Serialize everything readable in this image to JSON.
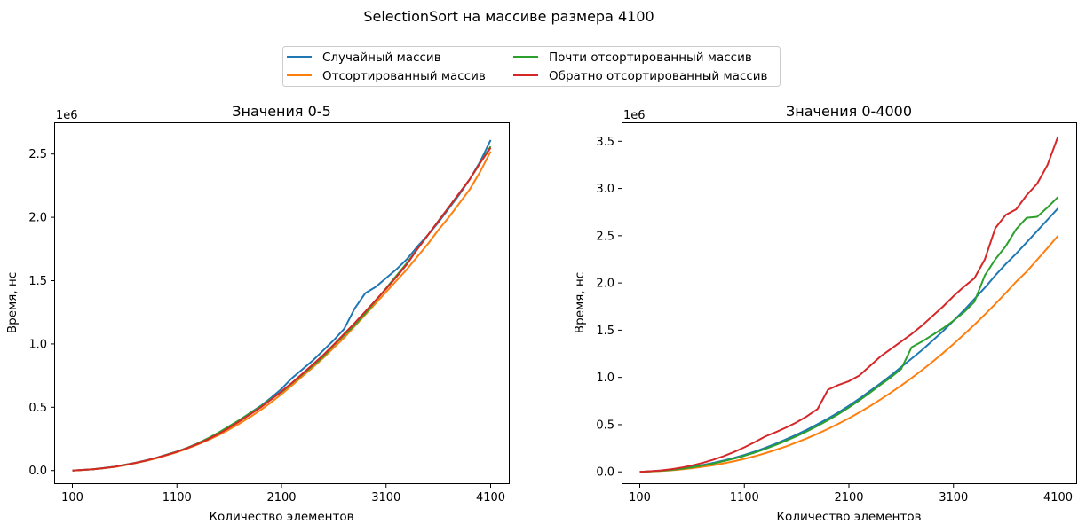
{
  "figure": {
    "suptitle": "SelectionSort на массиве размера 4100",
    "legend": {
      "placement": "top-center",
      "columns": 2,
      "items": [
        {
          "label": "Случайный массив",
          "color": "#1f77b4"
        },
        {
          "label": "Отсортированный массив",
          "color": "#ff7f0e"
        },
        {
          "label": "Почти отсортированный массив",
          "color": "#2ca02c"
        },
        {
          "label": "Обратно отсортированный массив",
          "color": "#d62728"
        }
      ]
    }
  },
  "chart_data": [
    {
      "type": "line",
      "title": "Значения 0-5",
      "xlabel": "Количество элементов",
      "ylabel": "Время, нс",
      "y_multiplier_label": "1e6",
      "xlim": [
        100,
        4100
      ],
      "ylim": [
        -0.1,
        2.75
      ],
      "xticks": [
        100,
        1100,
        2100,
        3100,
        4100
      ],
      "yticks": [
        0.0,
        0.5,
        1.0,
        1.5,
        2.0,
        2.5
      ],
      "ytick_labels": [
        "0.0",
        "0.5",
        "1.0",
        "1.5",
        "2.0",
        "2.5"
      ],
      "grid": false,
      "x": [
        100,
        200,
        300,
        400,
        500,
        600,
        700,
        800,
        900,
        1000,
        1100,
        1200,
        1300,
        1400,
        1500,
        1600,
        1700,
        1800,
        1900,
        2000,
        2100,
        2200,
        2300,
        2400,
        2500,
        2600,
        2700,
        2800,
        2900,
        3000,
        3100,
        3200,
        3300,
        3400,
        3500,
        3600,
        3700,
        3800,
        3900,
        4000,
        4100
      ],
      "series": [
        {
          "name": "Случайный массив",
          "color": "#1f77b4",
          "values": [
            0.0,
            0.005,
            0.01,
            0.02,
            0.03,
            0.045,
            0.06,
            0.08,
            0.1,
            0.125,
            0.15,
            0.18,
            0.215,
            0.255,
            0.3,
            0.35,
            0.4,
            0.455,
            0.51,
            0.575,
            0.645,
            0.73,
            0.8,
            0.87,
            0.95,
            1.03,
            1.12,
            1.28,
            1.4,
            1.45,
            1.52,
            1.59,
            1.67,
            1.77,
            1.86,
            1.96,
            2.07,
            2.18,
            2.3,
            2.44,
            2.61
          ]
        },
        {
          "name": "Отсортированный массив",
          "color": "#ff7f0e",
          "values": [
            0.0,
            0.004,
            0.01,
            0.018,
            0.028,
            0.042,
            0.058,
            0.076,
            0.096,
            0.12,
            0.145,
            0.174,
            0.206,
            0.242,
            0.28,
            0.325,
            0.372,
            0.423,
            0.478,
            0.538,
            0.603,
            0.672,
            0.745,
            0.815,
            0.89,
            0.97,
            1.05,
            1.14,
            1.23,
            1.32,
            1.41,
            1.5,
            1.59,
            1.69,
            1.79,
            1.9,
            2.0,
            2.11,
            2.22,
            2.36,
            2.52
          ]
        },
        {
          "name": "Почти отсортированный массив",
          "color": "#2ca02c",
          "values": [
            0.0,
            0.005,
            0.01,
            0.019,
            0.03,
            0.045,
            0.06,
            0.079,
            0.1,
            0.125,
            0.15,
            0.18,
            0.215,
            0.255,
            0.3,
            0.35,
            0.4,
            0.453,
            0.505,
            0.565,
            0.62,
            0.69,
            0.76,
            0.83,
            0.9,
            0.99,
            1.07,
            1.15,
            1.24,
            1.34,
            1.44,
            1.54,
            1.64,
            1.75,
            1.86,
            1.97,
            2.08,
            2.19,
            2.3,
            2.43,
            2.56
          ]
        },
        {
          "name": "Обратно отсортированный массив",
          "color": "#d62728",
          "values": [
            0.0,
            0.005,
            0.01,
            0.019,
            0.029,
            0.044,
            0.06,
            0.078,
            0.1,
            0.123,
            0.148,
            0.178,
            0.21,
            0.248,
            0.29,
            0.338,
            0.39,
            0.443,
            0.498,
            0.56,
            0.625,
            0.693,
            0.765,
            0.838,
            0.913,
            0.995,
            1.08,
            1.165,
            1.255,
            1.345,
            1.435,
            1.53,
            1.63,
            1.75,
            1.86,
            1.97,
            2.08,
            2.19,
            2.3,
            2.43,
            2.55
          ]
        }
      ]
    },
    {
      "type": "line",
      "title": "Значения 0-4000",
      "xlabel": "Количество элементов",
      "ylabel": "Время, нс",
      "y_multiplier_label": "1e6",
      "xlim": [
        100,
        4100
      ],
      "ylim": [
        -0.12,
        3.7
      ],
      "xticks": [
        100,
        1100,
        2100,
        3100,
        4100
      ],
      "yticks": [
        0.0,
        0.5,
        1.0,
        1.5,
        2.0,
        2.5,
        3.0,
        3.5
      ],
      "ytick_labels": [
        "0.0",
        "0.5",
        "1.0",
        "1.5",
        "2.0",
        "2.5",
        "3.0",
        "3.5"
      ],
      "grid": false,
      "x": [
        100,
        200,
        300,
        400,
        500,
        600,
        700,
        800,
        900,
        1000,
        1100,
        1200,
        1300,
        1400,
        1500,
        1600,
        1700,
        1800,
        1900,
        2000,
        2100,
        2200,
        2300,
        2400,
        2500,
        2600,
        2700,
        2800,
        2900,
        3000,
        3100,
        3200,
        3300,
        3400,
        3500,
        3600,
        3700,
        3800,
        3900,
        4000,
        4100
      ],
      "series": [
        {
          "name": "Случайный массив",
          "color": "#1f77b4",
          "values": [
            0.0,
            0.005,
            0.012,
            0.022,
            0.035,
            0.052,
            0.072,
            0.095,
            0.12,
            0.148,
            0.18,
            0.215,
            0.255,
            0.298,
            0.345,
            0.395,
            0.448,
            0.505,
            0.565,
            0.63,
            0.7,
            0.775,
            0.855,
            0.935,
            1.02,
            1.11,
            1.2,
            1.29,
            1.39,
            1.49,
            1.6,
            1.71,
            1.83,
            1.95,
            2.08,
            2.2,
            2.31,
            2.43,
            2.55,
            2.67,
            2.79
          ]
        },
        {
          "name": "Отсортированный массив",
          "color": "#ff7f0e",
          "values": [
            0.0,
            0.004,
            0.009,
            0.016,
            0.026,
            0.038,
            0.053,
            0.07,
            0.09,
            0.112,
            0.138,
            0.166,
            0.198,
            0.233,
            0.27,
            0.312,
            0.356,
            0.404,
            0.455,
            0.51,
            0.568,
            0.63,
            0.695,
            0.765,
            0.838,
            0.914,
            0.994,
            1.078,
            1.166,
            1.258,
            1.354,
            1.454,
            1.558,
            1.666,
            1.778,
            1.894,
            2.014,
            2.12,
            2.245,
            2.37,
            2.5
          ]
        },
        {
          "name": "Почти отсортированный массив",
          "color": "#2ca02c",
          "values": [
            0.0,
            0.005,
            0.011,
            0.02,
            0.032,
            0.048,
            0.067,
            0.088,
            0.113,
            0.14,
            0.17,
            0.204,
            0.243,
            0.285,
            0.33,
            0.378,
            0.43,
            0.487,
            0.547,
            0.612,
            0.682,
            0.757,
            0.837,
            0.92,
            1.0,
            1.09,
            1.32,
            1.38,
            1.45,
            1.52,
            1.6,
            1.69,
            1.8,
            2.08,
            2.25,
            2.39,
            2.57,
            2.69,
            2.7,
            2.8,
            2.91
          ]
        },
        {
          "name": "Обратно отсортированный массив",
          "color": "#d62728",
          "values": [
            0.0,
            0.007,
            0.015,
            0.028,
            0.045,
            0.068,
            0.095,
            0.128,
            0.166,
            0.21,
            0.26,
            0.315,
            0.375,
            0.42,
            0.47,
            0.525,
            0.59,
            0.665,
            0.87,
            0.92,
            0.96,
            1.02,
            1.12,
            1.22,
            1.3,
            1.38,
            1.46,
            1.55,
            1.65,
            1.75,
            1.86,
            1.96,
            2.05,
            2.25,
            2.58,
            2.72,
            2.78,
            2.93,
            3.05,
            3.25,
            3.55
          ]
        }
      ]
    }
  ]
}
